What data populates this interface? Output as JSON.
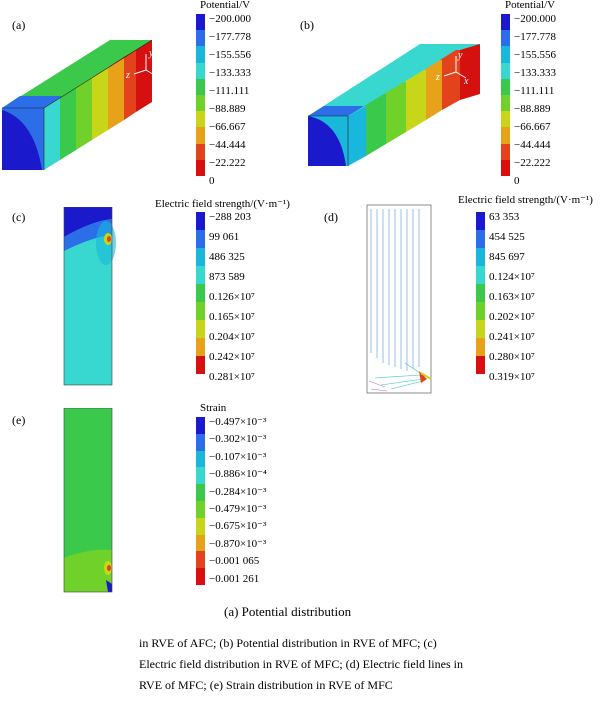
{
  "panels": {
    "a": {
      "label": "(a)",
      "legend_title": "Potential/V",
      "ticks": [
        "−200.000",
        "−177.778",
        "−155.556",
        "−133.333",
        "−111.111",
        "−88.889",
        "−66.667",
        "−44.444",
        "−22.222",
        "0"
      ]
    },
    "b": {
      "label": "(b)",
      "legend_title": "Potential/V",
      "ticks": [
        "−200.000",
        "−177.778",
        "−155.556",
        "−133.333",
        "−111.111",
        "−88.889",
        "−66.667",
        "−44.444",
        "−22.222",
        "0"
      ]
    },
    "c": {
      "label": "(c)",
      "legend_title": "Electric field strength/(V·m⁻¹)",
      "ticks": [
        "−288 203",
        "99 061",
        "486 325",
        "873 589",
        "0.126×10⁷",
        "0.165×10⁷",
        "0.204×10⁷",
        "0.242×10⁷",
        "0.281×10⁷"
      ]
    },
    "d": {
      "label": "(d)",
      "legend_title": "Electric field strength/(V·m⁻¹)",
      "ticks": [
        "63 353",
        "454 525",
        "845 697",
        "0.124×10⁷",
        "0.163×10⁷",
        "0.202×10⁷",
        "0.241×10⁷",
        "0.280×10⁷",
        "0.319×10⁷"
      ]
    },
    "e": {
      "label": "(e)",
      "legend_title": "Strain",
      "ticks": [
        "−0.497×10⁻³",
        "−0.302×10⁻³",
        "−0.107×10⁻³",
        "−0.886×10⁻⁴",
        "−0.284×10⁻³",
        "−0.479×10⁻³",
        "−0.675×10⁻³",
        "−0.870×10⁻³",
        "−0.001 065",
        "−0.001 261"
      ]
    }
  },
  "colors": [
    "#1a1acc",
    "#2b6ee8",
    "#19b7dc",
    "#38d7cf",
    "#3ac94a",
    "#6fd12a",
    "#c8d61a",
    "#e8a21a",
    "#e2421c",
    "#d60f0f"
  ],
  "axes": {
    "y": "y",
    "z": "z",
    "x": "x"
  },
  "caption": {
    "line1": "(a) Potential distribution",
    "body": "in RVE of AFC; (b) Potential distribution in RVE of MFC; (c) Electric field distribution in RVE of MFC; (d) Electric field lines in RVE of MFC; (e) Strain distribution in RVE of MFC"
  }
}
